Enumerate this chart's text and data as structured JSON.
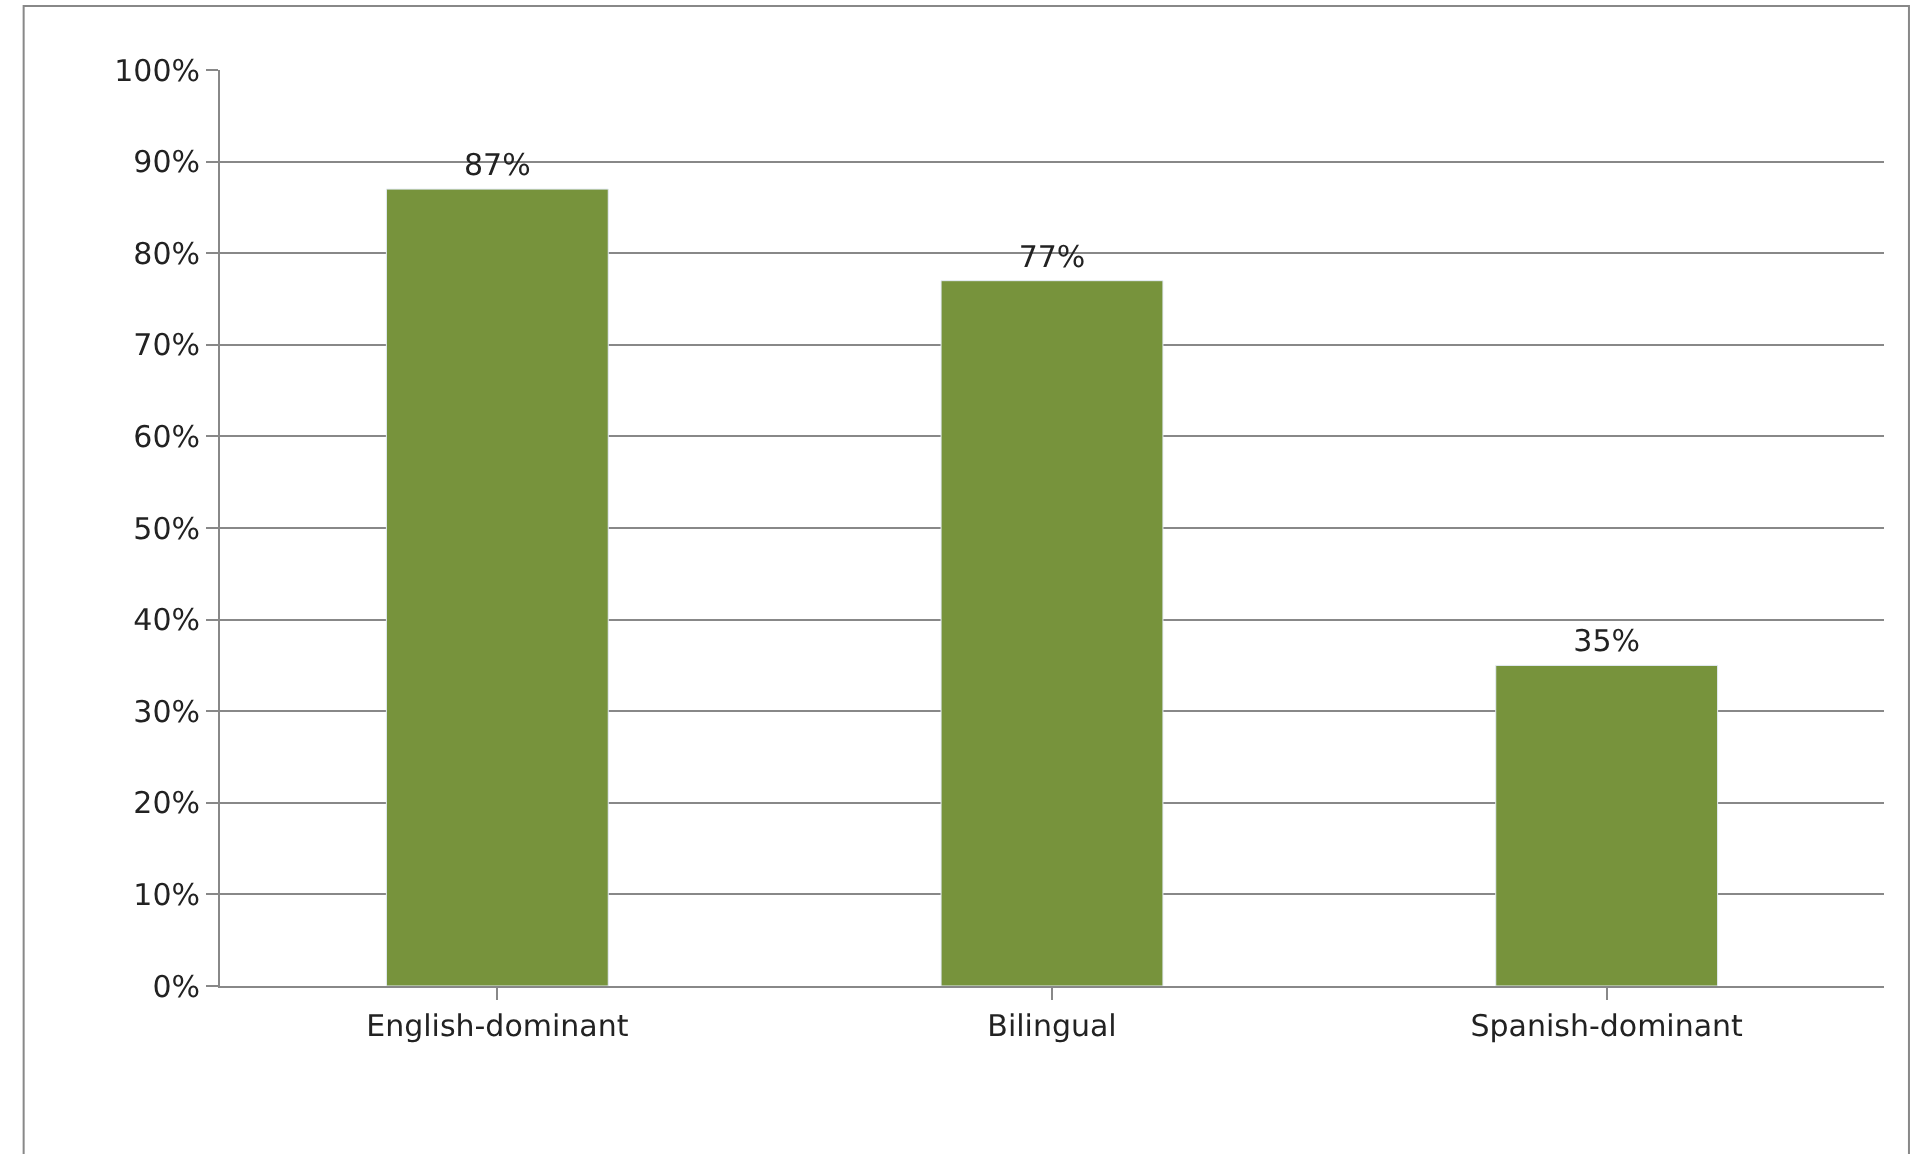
{
  "chart_data": {
    "type": "bar",
    "categories": [
      "English-dominant",
      "Bilingual",
      "Spanish-dominant"
    ],
    "series": [
      {
        "color": "#77933c",
        "values": [
          87,
          77,
          35
        ],
        "value_labels": [
          "87%",
          "77%",
          "35%"
        ]
      }
    ],
    "ylim": [
      0,
      100
    ],
    "yticks": [
      {
        "value": 0,
        "label": "0%"
      },
      {
        "value": 10,
        "label": "10%"
      },
      {
        "value": 20,
        "label": "20%"
      },
      {
        "value": 30,
        "label": "30%"
      },
      {
        "value": 40,
        "label": "40%"
      },
      {
        "value": 50,
        "label": "50%"
      },
      {
        "value": 60,
        "label": "60%"
      },
      {
        "value": 70,
        "label": "70%"
      },
      {
        "value": 80,
        "label": "80%"
      },
      {
        "value": 90,
        "label": "90%"
      },
      {
        "value": 100,
        "label": "100%"
      }
    ],
    "grid": "y"
  }
}
